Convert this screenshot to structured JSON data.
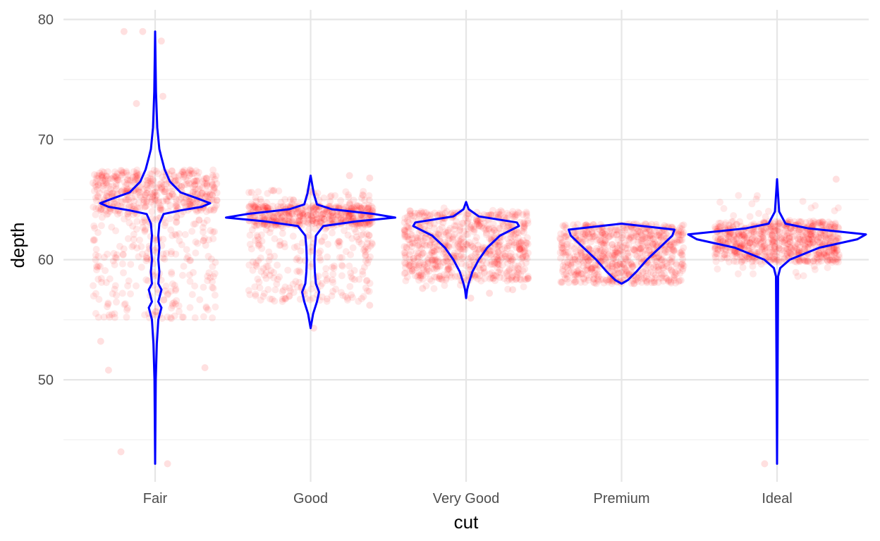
{
  "chart_data": {
    "type": "scatter",
    "xlabel": "cut",
    "ylabel": "depth",
    "categories": [
      "Fair",
      "Good",
      "Very Good",
      "Premium",
      "Ideal"
    ],
    "ylim": [
      41.5,
      80.8
    ],
    "y_ticks": [
      50,
      60,
      70,
      80
    ],
    "y_minor_ticks": [
      45,
      55,
      65,
      75
    ],
    "grid": true,
    "legend": "none",
    "point_color": "#ff0000",
    "point_alpha": 0.07,
    "violin_color": "#0000ff",
    "jitter_width": 0.4,
    "series": [
      {
        "category": "Fair",
        "min": 43,
        "max": 79,
        "main_range": [
          64,
          67.5
        ],
        "main_share": 0.5,
        "spread_range": [
          55,
          67.5
        ],
        "outliers": [
          [
            -0.2,
            79
          ],
          [
            -0.08,
            79
          ],
          [
            0.04,
            78.2
          ],
          [
            -0.3,
            50.8
          ],
          [
            -0.22,
            44
          ],
          [
            0.08,
            43
          ],
          [
            -0.35,
            53.2
          ],
          [
            0.32,
            51
          ],
          [
            -0.12,
            73
          ],
          [
            0.05,
            73.6
          ]
        ],
        "violin": [
          [
            43,
            0
          ],
          [
            50,
            0.003
          ],
          [
            53,
            0.008
          ],
          [
            55,
            0.015
          ],
          [
            56,
            0.03
          ],
          [
            56.5,
            0.015
          ],
          [
            57.5,
            0.03
          ],
          [
            58,
            0.015
          ],
          [
            59,
            0.02
          ],
          [
            60,
            0.015
          ],
          [
            61,
            0.02
          ],
          [
            62,
            0.015
          ],
          [
            63,
            0.02
          ],
          [
            63.8,
            0.04
          ],
          [
            64.1,
            0.12
          ],
          [
            64.4,
            0.22
          ],
          [
            64.7,
            0.26
          ],
          [
            65.1,
            0.2
          ],
          [
            65.6,
            0.12
          ],
          [
            66.5,
            0.07
          ],
          [
            67.5,
            0.045
          ],
          [
            68.5,
            0.03
          ],
          [
            69.2,
            0.02
          ],
          [
            71,
            0.01
          ],
          [
            74,
            0.004
          ],
          [
            79,
            0
          ]
        ]
      },
      {
        "category": "Good",
        "min": 54.3,
        "max": 67,
        "main_range": [
          62.8,
          64.5
        ],
        "main_share": 0.55,
        "spread_range": [
          56.5,
          65.8
        ],
        "outliers": [
          [
            0.02,
            54.3
          ],
          [
            0.38,
            56.2
          ],
          [
            0.38,
            66.8
          ],
          [
            0.25,
            67
          ],
          [
            -0.38,
            65.6
          ]
        ],
        "violin": [
          [
            54.3,
            0
          ],
          [
            55.5,
            0.012
          ],
          [
            56.5,
            0.03
          ],
          [
            57.3,
            0.04
          ],
          [
            58,
            0.025
          ],
          [
            59,
            0.02
          ],
          [
            60,
            0.018
          ],
          [
            61,
            0.02
          ],
          [
            62,
            0.025
          ],
          [
            62.8,
            0.06
          ],
          [
            63.2,
            0.22
          ],
          [
            63.5,
            0.4
          ],
          [
            63.8,
            0.3
          ],
          [
            64.2,
            0.1
          ],
          [
            64.6,
            0.03
          ],
          [
            65.5,
            0.015
          ],
          [
            67,
            0
          ]
        ]
      },
      {
        "category": "Very Good",
        "min": 56.8,
        "max": 64.8,
        "main_range": [
          58.2,
          64.1
        ],
        "main_share": 0.92,
        "spread_range": [
          57.5,
          64.4
        ],
        "outliers": [
          [
            0.03,
            56.8
          ],
          [
            0.15,
            57.2
          ],
          [
            -0.28,
            57.6
          ],
          [
            0.3,
            57.5
          ]
        ],
        "violin": [
          [
            56.8,
            0
          ],
          [
            57.5,
            0.005
          ],
          [
            58,
            0.012
          ],
          [
            59,
            0.03
          ],
          [
            60,
            0.06
          ],
          [
            61,
            0.1
          ],
          [
            62,
            0.16
          ],
          [
            62.8,
            0.25
          ],
          [
            63.1,
            0.24
          ],
          [
            63.6,
            0.06
          ],
          [
            64.2,
            0.012
          ],
          [
            64.8,
            0
          ]
        ]
      },
      {
        "category": "Premium",
        "min": 58,
        "max": 63,
        "main_range": [
          58,
          63
        ],
        "main_share": 1,
        "spread_range": [
          58,
          63
        ],
        "outliers": [],
        "violin": [
          [
            58,
            0
          ],
          [
            58.3,
            0.03
          ],
          [
            59,
            0.07
          ],
          [
            60,
            0.12
          ],
          [
            61,
            0.18
          ],
          [
            62,
            0.24
          ],
          [
            62.5,
            0.25
          ],
          [
            63,
            0
          ]
        ]
      },
      {
        "category": "Ideal",
        "min": 43,
        "max": 66.7,
        "main_range": [
          59.8,
          63.2
        ],
        "main_share": 0.9,
        "spread_range": [
          58.5,
          65.5
        ],
        "outliers": [
          [
            -0.08,
            43
          ],
          [
            0.38,
            66.7
          ]
        ],
        "violin": [
          [
            43,
            0
          ],
          [
            58.6,
            0.005
          ],
          [
            59.3,
            0.015
          ],
          [
            60,
            0.06
          ],
          [
            61,
            0.2
          ],
          [
            61.7,
            0.38
          ],
          [
            62.1,
            0.42
          ],
          [
            62.6,
            0.15
          ],
          [
            63,
            0.04
          ],
          [
            64,
            0.01
          ],
          [
            66.7,
            0
          ]
        ]
      }
    ]
  }
}
